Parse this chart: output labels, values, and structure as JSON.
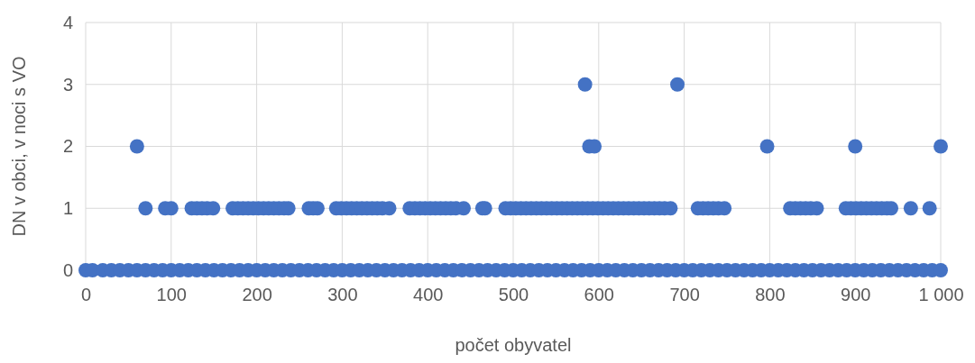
{
  "chart_data": {
    "type": "scatter",
    "xlabel": "počet obyvatel",
    "ylabel": "DN v obci, v noci s VO",
    "xlim": [
      0,
      1000
    ],
    "ylim": [
      0,
      4
    ],
    "xticks": [
      0,
      100,
      200,
      300,
      400,
      500,
      600,
      700,
      800,
      900,
      {
        "value": 1000,
        "label": "1 000"
      }
    ],
    "yticks": [
      0,
      1,
      2,
      3,
      4
    ],
    "grid": true,
    "marker": "circle",
    "series": [
      {
        "color": "#4472c4",
        "x": [
          0,
          8,
          20,
          30,
          40,
          50,
          60,
          70,
          80,
          90,
          100,
          110,
          120,
          130,
          140,
          150,
          160,
          170,
          180,
          190,
          200,
          210,
          220,
          230,
          240,
          250,
          260,
          270,
          280,
          290,
          300,
          310,
          320,
          330,
          340,
          350,
          360,
          370,
          380,
          390,
          400,
          410,
          420,
          430,
          440,
          450,
          460,
          470,
          480,
          490,
          500,
          510,
          520,
          530,
          540,
          550,
          560,
          570,
          580,
          590,
          600,
          610,
          620,
          630,
          640,
          650,
          660,
          670,
          680,
          690,
          700,
          710,
          720,
          730,
          740,
          750,
          760,
          770,
          780,
          790,
          800,
          810,
          820,
          830,
          840,
          850,
          860,
          870,
          880,
          890,
          900,
          910,
          920,
          930,
          940,
          950,
          960,
          970,
          980,
          990,
          1000,
          70,
          93,
          100,
          124,
          130,
          136,
          142,
          149,
          172,
          178,
          184,
          190,
          196,
          202,
          208,
          214,
          220,
          226,
          232,
          237,
          261,
          266,
          271,
          293,
          299,
          305,
          311,
          317,
          323,
          329,
          335,
          341,
          347,
          355,
          379,
          385,
          391,
          397,
          403,
          409,
          415,
          421,
          427,
          433,
          442,
          464,
          467,
          491,
          497,
          503,
          509,
          515,
          521,
          527,
          533,
          539,
          545,
          551,
          557,
          563,
          569,
          575,
          581,
          587,
          593,
          599,
          605,
          611,
          617,
          623,
          629,
          635,
          641,
          647,
          653,
          659,
          665,
          671,
          677,
          684,
          716,
          722,
          728,
          734,
          740,
          747,
          824,
          830,
          836,
          842,
          848,
          855,
          889,
          895,
          901,
          907,
          913,
          919,
          925,
          931,
          937,
          942,
          965,
          987,
          60,
          589,
          595,
          797,
          900,
          1000,
          584,
          692
        ],
        "values": [
          0,
          0,
          0,
          0,
          0,
          0,
          0,
          0,
          0,
          0,
          0,
          0,
          0,
          0,
          0,
          0,
          0,
          0,
          0,
          0,
          0,
          0,
          0,
          0,
          0,
          0,
          0,
          0,
          0,
          0,
          0,
          0,
          0,
          0,
          0,
          0,
          0,
          0,
          0,
          0,
          0,
          0,
          0,
          0,
          0,
          0,
          0,
          0,
          0,
          0,
          0,
          0,
          0,
          0,
          0,
          0,
          0,
          0,
          0,
          0,
          0,
          0,
          0,
          0,
          0,
          0,
          0,
          0,
          0,
          0,
          0,
          0,
          0,
          0,
          0,
          0,
          0,
          0,
          0,
          0,
          0,
          0,
          0,
          0,
          0,
          0,
          0,
          0,
          0,
          0,
          0,
          0,
          0,
          0,
          0,
          0,
          0,
          0,
          0,
          0,
          0,
          1,
          1,
          1,
          1,
          1,
          1,
          1,
          1,
          1,
          1,
          1,
          1,
          1,
          1,
          1,
          1,
          1,
          1,
          1,
          1,
          1,
          1,
          1,
          1,
          1,
          1,
          1,
          1,
          1,
          1,
          1,
          1,
          1,
          1,
          1,
          1,
          1,
          1,
          1,
          1,
          1,
          1,
          1,
          1,
          1,
          1,
          1,
          1,
          1,
          1,
          1,
          1,
          1,
          1,
          1,
          1,
          1,
          1,
          1,
          1,
          1,
          1,
          1,
          1,
          1,
          1,
          1,
          1,
          1,
          1,
          1,
          1,
          1,
          1,
          1,
          1,
          1,
          1,
          1,
          1,
          1,
          1,
          1,
          1,
          1,
          1,
          1,
          1,
          1,
          1,
          1,
          1,
          1,
          1,
          1,
          1,
          1,
          1,
          1,
          1,
          1,
          1,
          1,
          1,
          2,
          2,
          2,
          2,
          2,
          2,
          3,
          3
        ]
      }
    ]
  }
}
